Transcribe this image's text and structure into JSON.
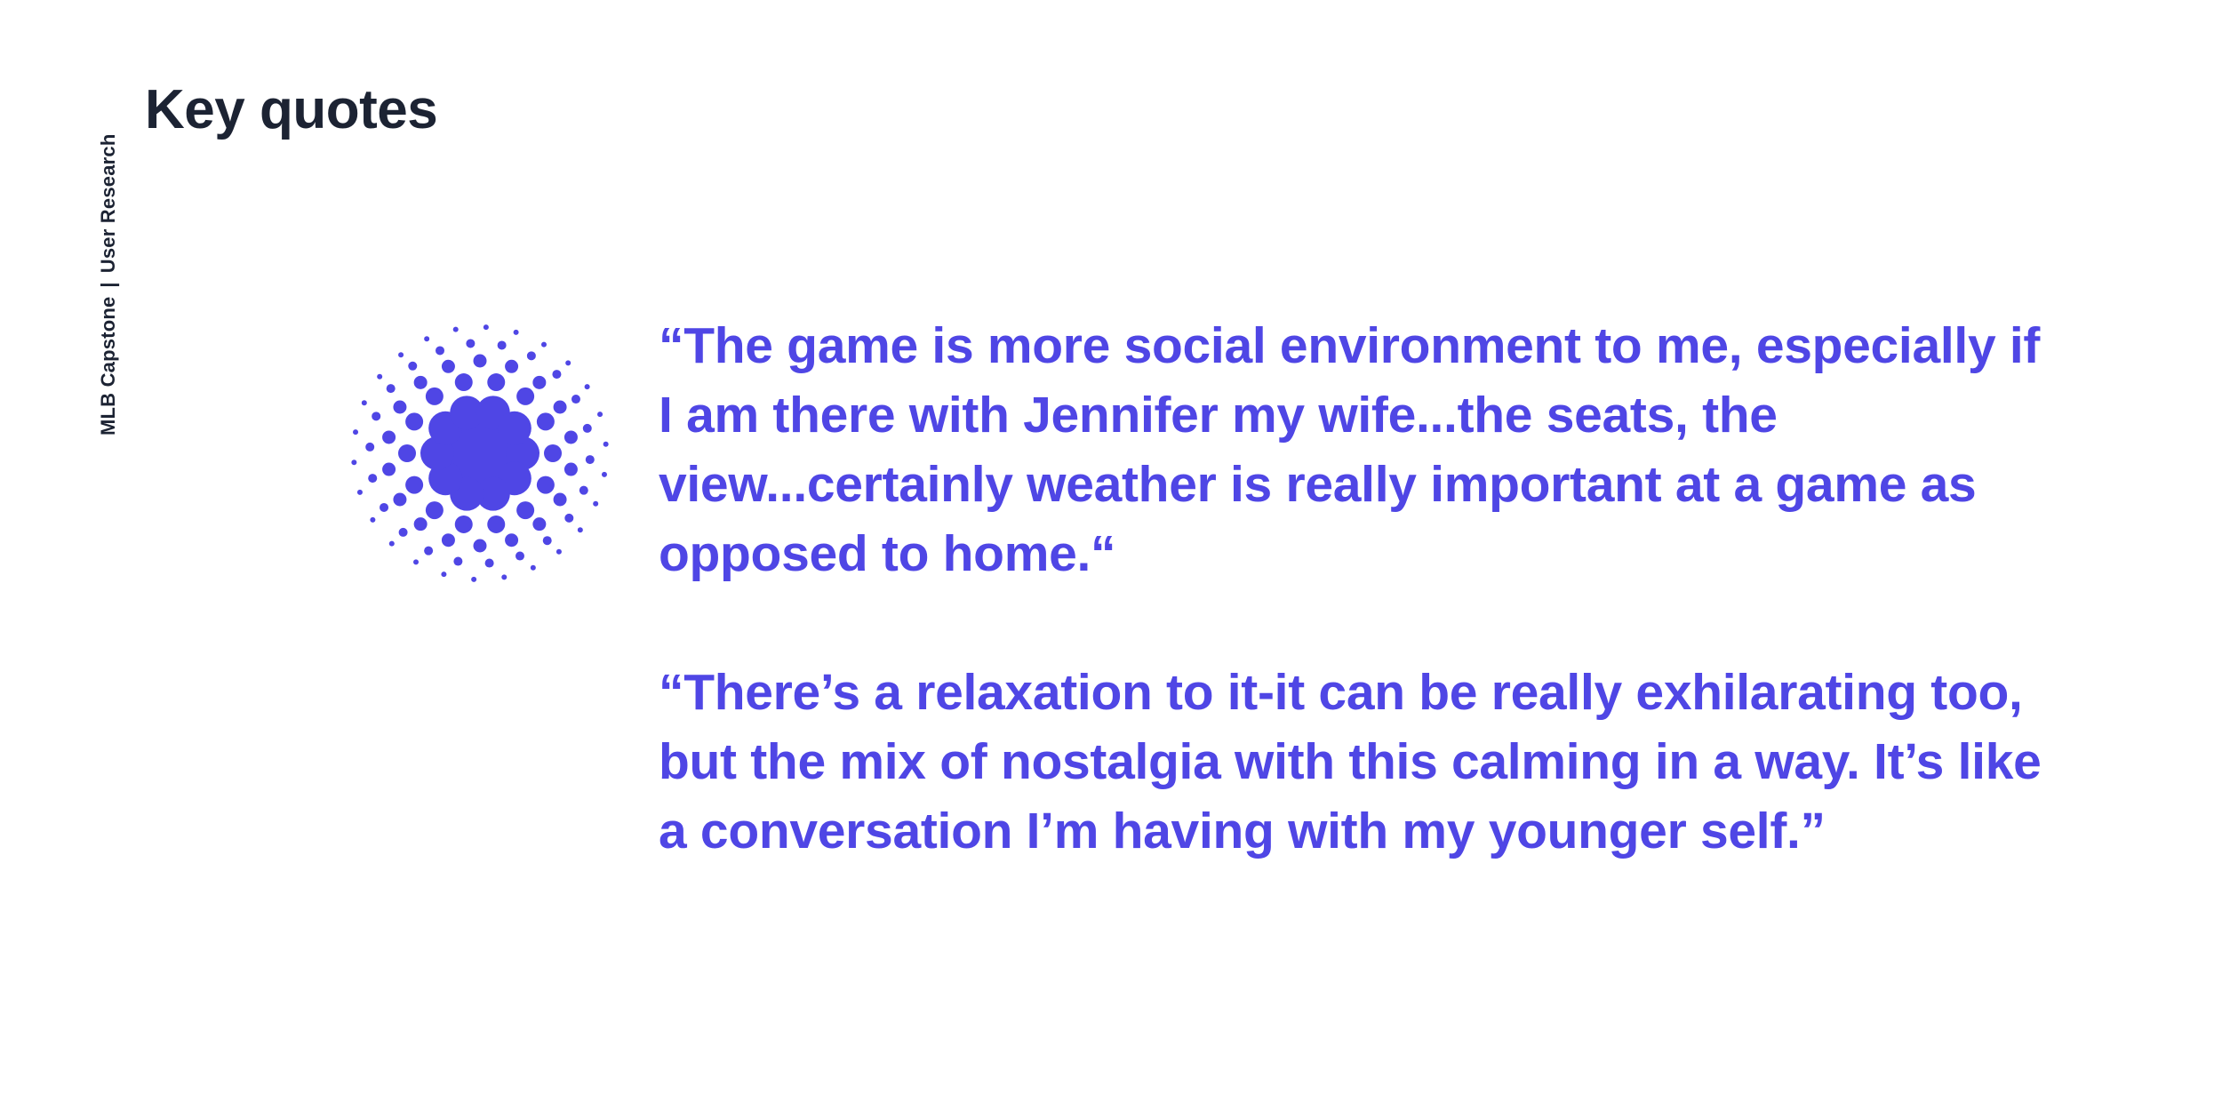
{
  "sidebar": {
    "project": "MLB Capstone",
    "separator": "|",
    "section": "User Research"
  },
  "header": {
    "title": "Key quotes"
  },
  "colors": {
    "accent": "#4f46e5",
    "heading": "#1c2333"
  },
  "decoration": {
    "icon": "halftone-burst-icon"
  },
  "quotes": [
    {
      "text": "“The game is more social environment to me, especially if I am there with Jennifer my wife...the seats, the view...certainly weather is really important at a game as opposed to home.“"
    },
    {
      "text": "“There’s a relaxation to it-it can be really exhilarating too, but the mix of  nostalgia with this calming in a way. It’s like a conversation I’m having with my younger self.”"
    }
  ]
}
